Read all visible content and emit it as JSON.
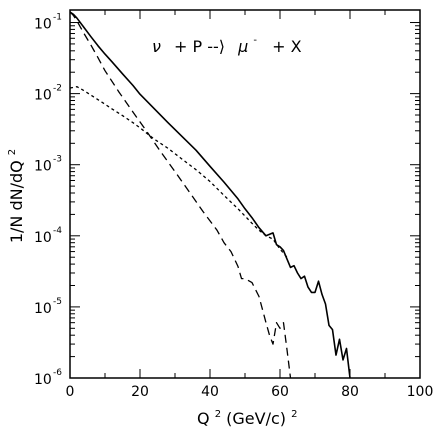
{
  "chart_data": {
    "type": "line",
    "title": "",
    "annotation": {
      "nu": "ν",
      "mid": "+ P --⟩",
      "mu": "μ",
      "mu_sup": "-",
      "end": "+ X"
    },
    "xlabel": {
      "main": "Q",
      "sup": "2",
      "rest": " (GeV/c)",
      "sup2": "2"
    },
    "ylabel": "1/N dN/dQ²",
    "ylabel_parts": {
      "a": "1/N dN/dQ",
      "sup": "2"
    },
    "x_ticks": [
      "0",
      "20",
      "40",
      "60",
      "80",
      "100"
    ],
    "y_ticks": [
      {
        "base": "10",
        "exp": "-1",
        "value": 0.1
      },
      {
        "base": "10",
        "exp": "-2",
        "value": 0.01
      },
      {
        "base": "10",
        "exp": "-3",
        "value": 0.001
      },
      {
        "base": "10",
        "exp": "-4",
        "value": 0.0001
      },
      {
        "base": "10",
        "exp": "-5",
        "value": 1e-05
      },
      {
        "base": "10",
        "exp": "-6",
        "value": 1e-06
      }
    ],
    "xlim": [
      0,
      100
    ],
    "ylim": [
      1e-06,
      0.15
    ],
    "y_scale": "log",
    "series": [
      {
        "style": "solid",
        "x": [
          0,
          1,
          2,
          4,
          6,
          8,
          10,
          12,
          15,
          18,
          20,
          24,
          28,
          32,
          36,
          40,
          44,
          48,
          50,
          52,
          54,
          56,
          58,
          59,
          60,
          61,
          62,
          63,
          64,
          65,
          66,
          67,
          68,
          69,
          70,
          71,
          72,
          73,
          74,
          75,
          76,
          77,
          78,
          79,
          80
        ],
        "y": [
          0.14,
          0.13,
          0.115,
          0.085,
          0.063,
          0.047,
          0.036,
          0.028,
          0.019,
          0.013,
          0.0098,
          0.0062,
          0.0039,
          0.0025,
          0.0016,
          0.00095,
          0.00057,
          0.00033,
          0.00024,
          0.00018,
          0.00013,
          0.0001,
          0.00011,
          7.5e-05,
          7e-05,
          6.2e-05,
          4.7e-05,
          3.6e-05,
          3.8e-05,
          3e-05,
          2.5e-05,
          2.7e-05,
          1.9e-05,
          1.6e-05,
          1.6e-05,
          2.3e-05,
          1.5e-05,
          1.1e-05,
          5.5e-06,
          4.8e-06,
          2.1e-06,
          3.5e-06,
          1.8e-06,
          2.6e-06,
          1e-06
        ]
      },
      {
        "style": "dashed",
        "x": [
          0,
          1,
          2,
          4,
          6,
          8,
          10,
          14,
          18,
          22,
          26,
          30,
          34,
          38,
          42,
          44,
          46,
          48,
          49,
          50,
          52,
          54,
          56,
          57,
          58,
          59,
          60,
          61,
          62,
          63
        ],
        "y": [
          0.14,
          0.125,
          0.105,
          0.07,
          0.048,
          0.032,
          0.021,
          0.0105,
          0.0055,
          0.0029,
          0.0015,
          0.0008,
          0.00042,
          0.00022,
          0.00012,
          8e-05,
          6e-05,
          3.7e-05,
          2.5e-05,
          2.5e-05,
          2.2e-05,
          1.4e-05,
          6e-06,
          4e-06,
          3e-06,
          6e-06,
          5e-06,
          6e-06,
          2.5e-06,
          1e-06
        ]
      },
      {
        "style": "dotted",
        "x": [
          0,
          2,
          4,
          6,
          8,
          10,
          12,
          15,
          18,
          20,
          24,
          28,
          32,
          36,
          40,
          44,
          48,
          50,
          52,
          54,
          56,
          58,
          60,
          62
        ],
        "y": [
          0.012,
          0.0125,
          0.011,
          0.0095,
          0.0082,
          0.0071,
          0.0061,
          0.0049,
          0.0039,
          0.0033,
          0.0023,
          0.0017,
          0.0012,
          0.00085,
          0.00058,
          0.00037,
          0.00024,
          0.00019,
          0.00015,
          0.00012,
          0.0001,
          9e-05,
          6.5e-05,
          5e-05
        ]
      }
    ]
  }
}
